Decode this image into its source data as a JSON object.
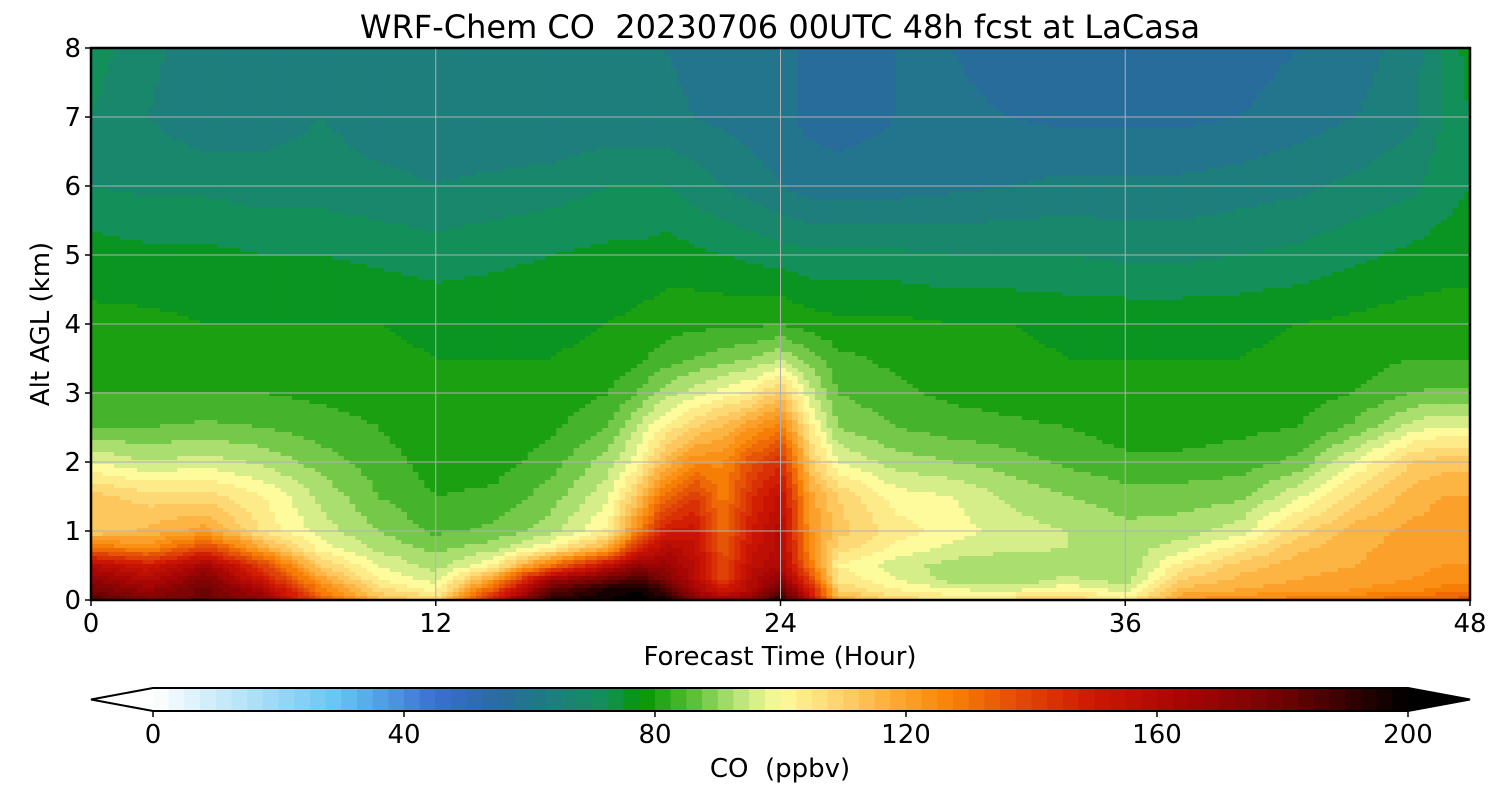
{
  "chart_data": {
    "type": "heatmap",
    "title": "WRF-Chem CO  20230706 00UTC 48h fcst at LaCasa",
    "xlabel": "Forecast Time (Hour)",
    "ylabel": "Alt AGL (km)",
    "xlim": [
      0,
      48
    ],
    "ylim": [
      0,
      8
    ],
    "xticks": [
      0,
      12,
      24,
      36,
      48
    ],
    "yticks": [
      0,
      1,
      2,
      3,
      4,
      5,
      6,
      7,
      8
    ],
    "grid": true,
    "colorbar": {
      "label": "CO  (ppbv)",
      "range": [
        0,
        200
      ],
      "ticks": [
        0,
        40,
        80,
        120,
        160,
        200
      ],
      "extend": "both",
      "orientation": "horizontal",
      "stops": [
        {
          "value": 0,
          "color": "#ffffff"
        },
        {
          "value": 20,
          "color": "#9ad8f5"
        },
        {
          "value": 30,
          "color": "#63c3f2"
        },
        {
          "value": 45,
          "color": "#3b6fd0"
        },
        {
          "value": 55,
          "color": "#2a6aa0"
        },
        {
          "value": 62,
          "color": "#1f7a84"
        },
        {
          "value": 72,
          "color": "#13905a"
        },
        {
          "value": 78,
          "color": "#059605"
        },
        {
          "value": 86,
          "color": "#5bbe36"
        },
        {
          "value": 93,
          "color": "#b7e47a"
        },
        {
          "value": 100,
          "color": "#fdfb9c"
        },
        {
          "value": 110,
          "color": "#fdd16b"
        },
        {
          "value": 118,
          "color": "#fcaa36"
        },
        {
          "value": 127,
          "color": "#f98306"
        },
        {
          "value": 137,
          "color": "#e44f06"
        },
        {
          "value": 150,
          "color": "#cf1604"
        },
        {
          "value": 165,
          "color": "#a40505"
        },
        {
          "value": 180,
          "color": "#6e0303"
        },
        {
          "value": 193,
          "color": "#260101"
        },
        {
          "value": 200,
          "color": "#000000"
        }
      ]
    },
    "field": {
      "time_hours": [
        0,
        2,
        4,
        6,
        8,
        10,
        12,
        14,
        16,
        18,
        19,
        20,
        21,
        22,
        23,
        24,
        25,
        26,
        28,
        30,
        32,
        34,
        36,
        38,
        40,
        42,
        44,
        46,
        47,
        48
      ],
      "altitude_km": [
        0,
        0.15,
        0.3,
        0.5,
        0.75,
        1.0,
        1.5,
        2.0,
        2.5,
        3.0,
        3.5,
        4.0,
        5.0,
        6.0,
        7.0,
        8.0
      ],
      "co_ppbv_by_altitude": [
        [
          185,
          175,
          180,
          170,
          135,
          115,
          108,
          150,
          192,
          198,
          200,
          196,
          175,
          165,
          172,
          195,
          158,
          118,
          108,
          106,
          108,
          110,
          103,
          122,
          126,
          128,
          130,
          133,
          135,
          136
        ],
        [
          178,
          168,
          180,
          162,
          128,
          108,
          100,
          135,
          182,
          195,
          198,
          188,
          165,
          150,
          160,
          182,
          150,
          110,
          102,
          98,
          97,
          101,
          96,
          115,
          118,
          120,
          122,
          125,
          127,
          128
        ],
        [
          170,
          160,
          175,
          150,
          120,
          102,
          96,
          120,
          165,
          180,
          188,
          175,
          160,
          140,
          160,
          170,
          140,
          105,
          98,
          92,
          90,
          95,
          92,
          110,
          115,
          118,
          120,
          122,
          124,
          124
        ],
        [
          160,
          150,
          165,
          140,
          110,
          98,
          92,
          102,
          130,
          155,
          170,
          168,
          158,
          138,
          156,
          162,
          130,
          102,
          96,
          92,
          90,
          92,
          90,
          104,
          112,
          116,
          118,
          120,
          122,
          122
        ],
        [
          130,
          125,
          140,
          118,
          100,
          93,
          89,
          92,
          102,
          118,
          145,
          160,
          155,
          135,
          152,
          160,
          125,
          108,
          101,
          97,
          95,
          94,
          92,
          96,
          104,
          113,
          117,
          120,
          121,
          121
        ],
        [
          110,
          115,
          120,
          105,
          96,
          90,
          85,
          87,
          92,
          103,
          125,
          150,
          152,
          132,
          150,
          160,
          123,
          112,
          104,
          100,
          96,
          94,
          91,
          92,
          96,
          108,
          116,
          119,
          120,
          120
        ],
        [
          112,
          108,
          108,
          102,
          93,
          86,
          82,
          83,
          88,
          97,
          112,
          132,
          142,
          128,
          145,
          155,
          120,
          110,
          100,
          98,
          93,
          90,
          88,
          88,
          89,
          97,
          108,
          116,
          118,
          118
        ],
        [
          98,
          94,
          96,
          93,
          88,
          84,
          80,
          80,
          84,
          92,
          100,
          115,
          125,
          125,
          137,
          145,
          112,
          98,
          92,
          90,
          88,
          85,
          83,
          83,
          84,
          87,
          98,
          110,
          112,
          112
        ],
        [
          86,
          86,
          87,
          86,
          84,
          82,
          79,
          79,
          81,
          86,
          94,
          103,
          110,
          115,
          122,
          128,
          104,
          90,
          86,
          84,
          83,
          82,
          80,
          80,
          81,
          82,
          87,
          96,
          98,
          98
        ],
        [
          82,
          82,
          82,
          82,
          81,
          80,
          78,
          78,
          79,
          82,
          86,
          92,
          96,
          100,
          103,
          112,
          96,
          86,
          83,
          81,
          80,
          79,
          78,
          78,
          79,
          80,
          82,
          86,
          87,
          87
        ],
        [
          80,
          80,
          80,
          80,
          79,
          79,
          78,
          78,
          78,
          79,
          81,
          84,
          86,
          88,
          90,
          93,
          88,
          83,
          81,
          80,
          79,
          78,
          78,
          78,
          78,
          79,
          80,
          82,
          82,
          82
        ],
        [
          79,
          79,
          78,
          78,
          78,
          78,
          77,
          77,
          77,
          78,
          79,
          80,
          81,
          81,
          81,
          82,
          80,
          79,
          79,
          78,
          78,
          77,
          77,
          77,
          77,
          78,
          79,
          80,
          80,
          80
        ],
        [
          76,
          75,
          75,
          74,
          74,
          73,
          72,
          73,
          74,
          75,
          75,
          76,
          75,
          74,
          73,
          72,
          71,
          71,
          71,
          70,
          70,
          70,
          69,
          69,
          70,
          71,
          73,
          75,
          76,
          76
        ],
        [
          70,
          69,
          69,
          68,
          68,
          67,
          66,
          67,
          68,
          70,
          70,
          70,
          68,
          66,
          64,
          62,
          60,
          60,
          60,
          61,
          62,
          63,
          63,
          63,
          64,
          65,
          67,
          69,
          72,
          74
        ],
        [
          70,
          66,
          63,
          64,
          66,
          64,
          64,
          62,
          62,
          63,
          63,
          63,
          62,
          61,
          60,
          59,
          57,
          56,
          58,
          59,
          58,
          57,
          57,
          57,
          58,
          60,
          62,
          65,
          70,
          74
        ],
        [
          72,
          67,
          64,
          64,
          66,
          64,
          63,
          62,
          62,
          62,
          62,
          62,
          61,
          60,
          60,
          59,
          57,
          57,
          58,
          58,
          56,
          55,
          55,
          55,
          56,
          58,
          60,
          64,
          70,
          76
        ]
      ]
    }
  }
}
